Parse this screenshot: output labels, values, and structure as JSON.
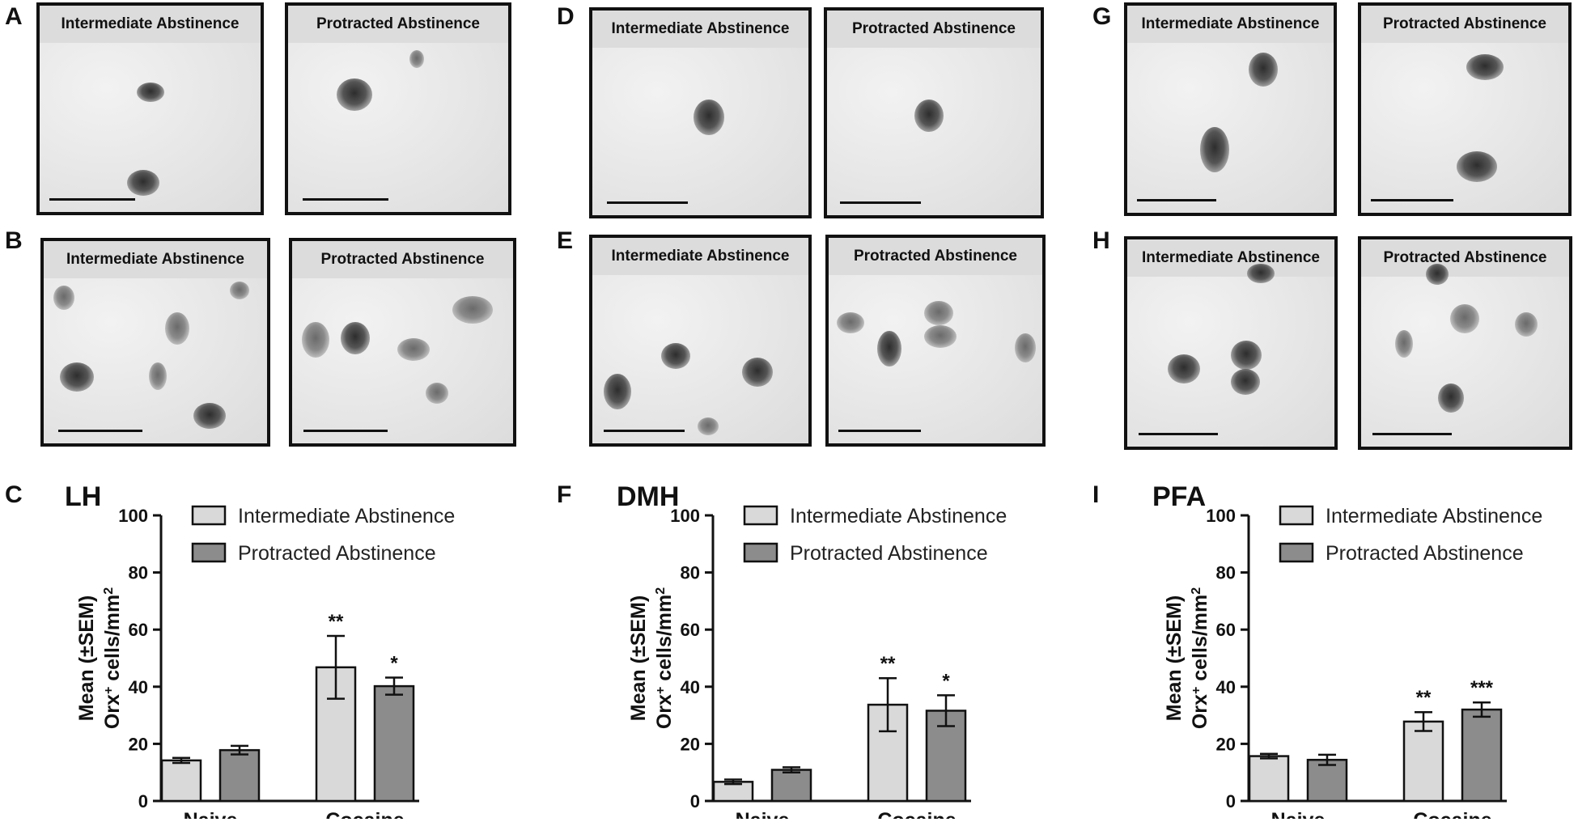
{
  "panel_letters": [
    "A",
    "B",
    "C",
    "D",
    "E",
    "F",
    "G",
    "H",
    "I"
  ],
  "micrograph_titles": {
    "intermediate": "Intermediate Abstinence",
    "protracted": "Protracted Abstinence"
  },
  "colors": {
    "intermediate": "#d9d9d9",
    "protracted": "#8c8c8c",
    "axis": "#111111"
  },
  "chart_data": [
    {
      "type": "bar",
      "panel": "C",
      "title": "LH",
      "categories": [
        "Naive",
        "Cocaine"
      ],
      "ylabel_line1": "Mean (±SEM)",
      "ylabel_line2_pre": "Orx",
      "ylabel_line2_sup": "+",
      "ylabel_line2_mid": " cells/mm",
      "ylabel_line2_sup2": "2",
      "ylim": [
        0,
        100
      ],
      "yticks": [
        0,
        20,
        40,
        60,
        80,
        100
      ],
      "legend_position": "top-right",
      "series": [
        {
          "name": "Intermediate Abstinence",
          "values": [
            14.2,
            46.8
          ],
          "sem": [
            0.9,
            11.0
          ],
          "sig": [
            "",
            "**"
          ]
        },
        {
          "name": "Protracted Abstinence",
          "values": [
            17.8,
            40.2
          ],
          "sem": [
            1.5,
            3.0
          ],
          "sig": [
            "",
            "*"
          ]
        }
      ]
    },
    {
      "type": "bar",
      "panel": "F",
      "title": "DMH",
      "categories": [
        "Naive",
        "Cocaine"
      ],
      "ylabel_line1": "Mean (±SEM)",
      "ylabel_line2_pre": "Orx",
      "ylabel_line2_sup": "+",
      "ylabel_line2_mid": " cells/mm",
      "ylabel_line2_sup2": "2",
      "ylim": [
        0,
        100
      ],
      "yticks": [
        0,
        20,
        40,
        60,
        80,
        100
      ],
      "legend_position": "top-right",
      "series": [
        {
          "name": "Intermediate Abstinence",
          "values": [
            6.7,
            33.7
          ],
          "sem": [
            0.8,
            9.3
          ],
          "sig": [
            "",
            "**"
          ]
        },
        {
          "name": "Protracted Abstinence",
          "values": [
            10.9,
            31.6
          ],
          "sem": [
            0.9,
            5.4
          ],
          "sig": [
            "",
            "*"
          ]
        }
      ]
    },
    {
      "type": "bar",
      "panel": "I",
      "title": "PFA",
      "categories": [
        "Naive",
        "Cocaine"
      ],
      "ylabel_line1": "Mean (±SEM)",
      "ylabel_line2_pre": "Orx",
      "ylabel_line2_sup": "+",
      "ylabel_line2_mid": " cells/mm",
      "ylabel_line2_sup2": "2",
      "ylim": [
        0,
        100
      ],
      "yticks": [
        0,
        20,
        40,
        60,
        80,
        100
      ],
      "legend_position": "top-right",
      "series": [
        {
          "name": "Intermediate Abstinence",
          "values": [
            15.7,
            27.8
          ],
          "sem": [
            0.8,
            3.3
          ],
          "sig": [
            "",
            "**"
          ]
        },
        {
          "name": "Protracted Abstinence",
          "values": [
            14.4,
            32.0
          ],
          "sem": [
            1.8,
            2.5
          ],
          "sig": [
            "",
            "***"
          ]
        }
      ]
    }
  ]
}
